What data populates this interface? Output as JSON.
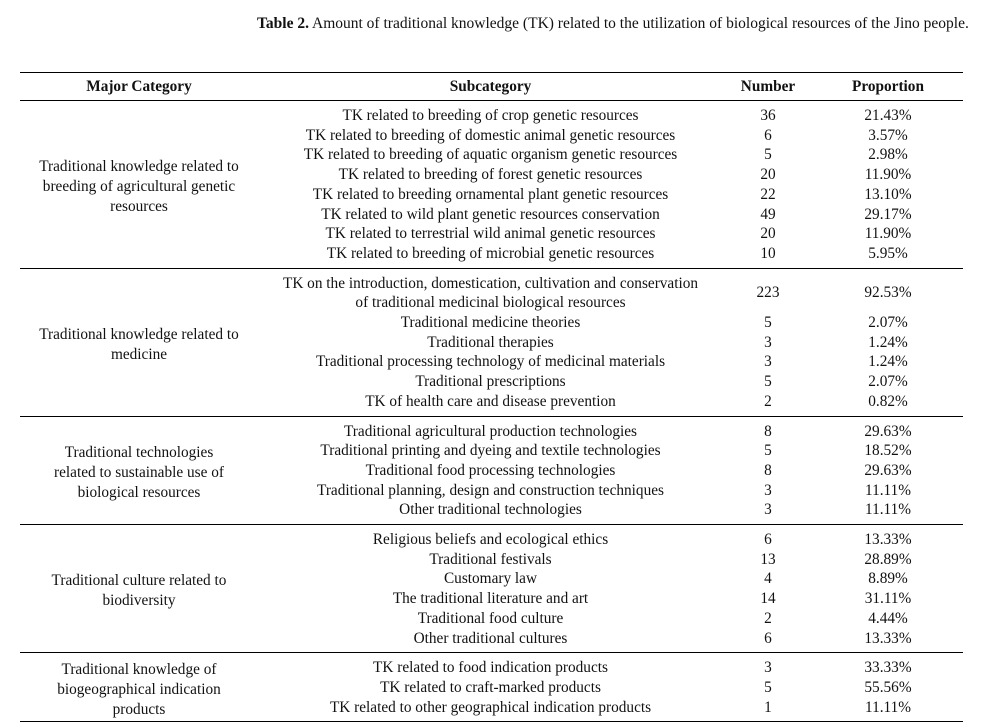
{
  "caption": {
    "label": "Table 2.",
    "text": " Amount of traditional knowledge (TK) related to the utilization of biological resources of the Jino people."
  },
  "headers": [
    "Major Category",
    "Subcategory",
    "Number",
    "Proportion"
  ],
  "groups": [
    {
      "major": "Traditional knowledge related to breeding of agricultural genetic resources",
      "rows": [
        [
          "TK related to breeding of crop genetic resources",
          "36",
          "21.43%"
        ],
        [
          "TK related to breeding of domestic animal genetic resources",
          "6",
          "3.57%"
        ],
        [
          "TK related to breeding of aquatic organism genetic resources",
          "5",
          "2.98%"
        ],
        [
          "TK related to breeding of forest genetic resources",
          "20",
          "11.90%"
        ],
        [
          "TK related to breeding ornamental plant genetic resources",
          "22",
          "13.10%"
        ],
        [
          "TK related to wild plant genetic resources conservation",
          "49",
          "29.17%"
        ],
        [
          "TK related to terrestrial wild animal genetic resources",
          "20",
          "11.90%"
        ],
        [
          "TK related to breeding of microbial genetic resources",
          "10",
          "5.95%"
        ]
      ]
    },
    {
      "major": "Traditional knowledge related to medicine",
      "rows": [
        [
          "TK on the introduction, domestication, cultivation and conservation of traditional medicinal biological resources",
          "223",
          "92.53%"
        ],
        [
          "Traditional medicine theories",
          "5",
          "2.07%"
        ],
        [
          "Traditional therapies",
          "3",
          "1.24%"
        ],
        [
          "Traditional processing technology of medicinal materials",
          "3",
          "1.24%"
        ],
        [
          "Traditional prescriptions",
          "5",
          "2.07%"
        ],
        [
          "TK of health care and disease prevention",
          "2",
          "0.82%"
        ]
      ]
    },
    {
      "major": "Traditional technologies related to sustainable use of biological resources",
      "rows": [
        [
          "Traditional agricultural production technologies",
          "8",
          "29.63%"
        ],
        [
          "Traditional printing and dyeing and textile technologies",
          "5",
          "18.52%"
        ],
        [
          "Traditional food processing technologies",
          "8",
          "29.63%"
        ],
        [
          "Traditional planning, design and construction techniques",
          "3",
          "11.11%"
        ],
        [
          "Other traditional technologies",
          "3",
          "11.11%"
        ]
      ]
    },
    {
      "major": "Traditional culture related to biodiversity",
      "rows": [
        [
          "Religious beliefs and ecological ethics",
          "6",
          "13.33%"
        ],
        [
          "Traditional festivals",
          "13",
          "28.89%"
        ],
        [
          "Customary law",
          "4",
          "8.89%"
        ],
        [
          "The traditional literature and art",
          "14",
          "31.11%"
        ],
        [
          "Traditional food culture",
          "2",
          "4.44%"
        ],
        [
          "Other traditional cultures",
          "6",
          "13.33%"
        ]
      ]
    },
    {
      "major": "Traditional knowledge of biogeographical indication products",
      "rows": [
        [
          "TK related to food indication products",
          "3",
          "33.33%"
        ],
        [
          "TK related to craft-marked products",
          "5",
          "55.56%"
        ],
        [
          "TK related to other geographical indication products",
          "1",
          "11.11%"
        ]
      ]
    }
  ]
}
